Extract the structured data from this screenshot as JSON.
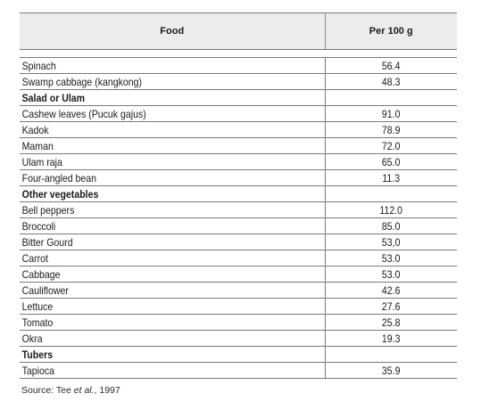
{
  "table": {
    "headers": {
      "food": "Food",
      "value": "Per 100 g"
    },
    "rows": [
      {
        "type": "data",
        "food": "Spinach",
        "value": "56.4"
      },
      {
        "type": "data",
        "food": "Swamp cabbage (kangkong)",
        "value": "48.3"
      },
      {
        "type": "section",
        "food": "Salad or Ulam",
        "value": ""
      },
      {
        "type": "data",
        "food": "Cashew leaves (Pucuk gajus)",
        "value": "91.0"
      },
      {
        "type": "data",
        "food": "Kadok",
        "value": "78.9"
      },
      {
        "type": "data",
        "food": "Maman",
        "value": "72.0"
      },
      {
        "type": "data",
        "food": "Ulam raja",
        "value": "65.0"
      },
      {
        "type": "data",
        "food": "Four-angled bean",
        "value": "11.3"
      },
      {
        "type": "section",
        "food": "Other vegetables",
        "value": ""
      },
      {
        "type": "data",
        "food": "Bell peppers",
        "value": "112.0"
      },
      {
        "type": "data",
        "food": "Broccoli",
        "value": "85.0"
      },
      {
        "type": "data",
        "food": "Bitter Gourd",
        "value": "53,0"
      },
      {
        "type": "data",
        "food": "Carrot",
        "value": "53.0"
      },
      {
        "type": "data",
        "food": "Cabbage",
        "value": "53.0"
      },
      {
        "type": "data",
        "food": "Cauliflower",
        "value": "42.6"
      },
      {
        "type": "data",
        "food": "Lettuce",
        "value": "27.6"
      },
      {
        "type": "data",
        "food": "Tomato",
        "value": "25.8"
      },
      {
        "type": "data",
        "food": "Okra",
        "value": "19.3"
      },
      {
        "type": "section",
        "food": "Tubers",
        "value": ""
      },
      {
        "type": "data",
        "food": "Tapioca",
        "value": "35.9"
      }
    ]
  },
  "source": {
    "prefix": "Source: Tee ",
    "italic": "et al.",
    "suffix": ", 1997"
  }
}
